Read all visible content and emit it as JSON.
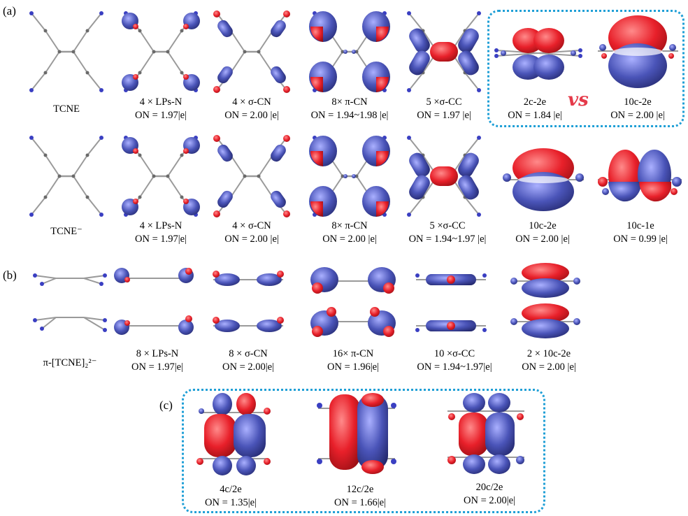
{
  "panels": {
    "a": "(a)",
    "b": "(b)",
    "c": "(c)"
  },
  "colors": {
    "lobe_red": "#e8202a",
    "lobe_blue": "#4a54b8",
    "atom_blue": "#3a3fc2",
    "bond_gray": "#9a9a9a",
    "atom_gray": "#6a6a6a",
    "dash_box": "#1f9fd6",
    "vs_red": "#e53a4a"
  },
  "row1": {
    "items": [
      {
        "label": "TCNE",
        "on": ""
      },
      {
        "label": "4 × LPs-N",
        "on": "ON = 1.97|e|"
      },
      {
        "label": "4 × σ-CN",
        "on": "ON = 2.00 |e|"
      },
      {
        "label": "8× π-CN",
        "on": "ON = 1.94~1.98 |e|"
      },
      {
        "label": "5 ×σ-CC",
        "on": "ON = 1.97 |e|"
      },
      {
        "label": "2c-2e",
        "on": "ON = 1.84 |e|"
      },
      {
        "label": "10c-2e",
        "on": "ON = 2.00 |e|"
      }
    ],
    "vs": "vs"
  },
  "row2": {
    "items": [
      {
        "label": "TCNE⁻",
        "on": ""
      },
      {
        "label": "4 × LPs-N",
        "on": "ON = 1.97|e|"
      },
      {
        "label": "4 × σ-CN",
        "on": "ON = 2.00 |e|"
      },
      {
        "label": "8× π-CN",
        "on": "ON = 2.00 |e|"
      },
      {
        "label": "5 ×σ-CC",
        "on": "ON = 1.94~1.97 |e|"
      },
      {
        "label": "10c-2e",
        "on": "ON = 2.00 |e|"
      },
      {
        "label": "10c-1e",
        "on": "ON = 0.99 |e|"
      }
    ]
  },
  "row3": {
    "items": [
      {
        "label": "π-[TCNE]₂²⁻",
        "on": ""
      },
      {
        "label": "8 × LPs-N",
        "on": "ON = 1.97|e|"
      },
      {
        "label": "8 × σ-CN",
        "on": "ON = 2.00|e|"
      },
      {
        "label": "16× π-CN",
        "on": "ON = 1.96|e|"
      },
      {
        "label": "10 ×σ-CC",
        "on": "ON = 1.94~1.97|e|"
      },
      {
        "label": "2 × 10c-2e",
        "on": "ON = 2.00 |e|"
      }
    ]
  },
  "row4": {
    "items": [
      {
        "label": "4c/2e",
        "on": "ON = 1.35|e|"
      },
      {
        "label": "12c/2e",
        "on": "ON = 1.66|e|"
      },
      {
        "label": "20c/2e",
        "on": "ON = 2.00|e|"
      }
    ]
  }
}
